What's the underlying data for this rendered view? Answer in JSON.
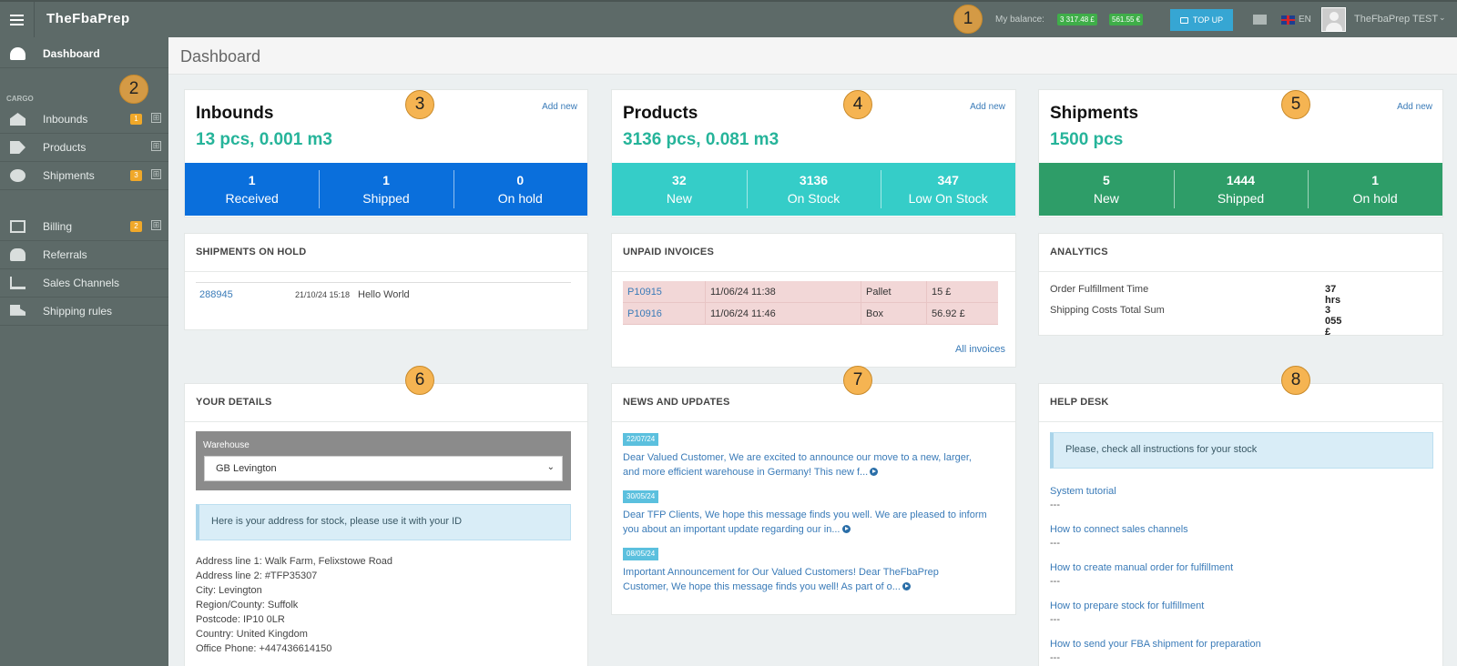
{
  "topbar": {
    "brand": "TheFbaPrep",
    "balance_label": "My balance:",
    "balances": [
      "3 317.48 £",
      "561.55 €"
    ],
    "topup_label": "TOP UP",
    "lang": "EN",
    "username": "TheFbaPrep TEST",
    "caret": "⌄"
  },
  "sidebar": {
    "dashboard": "Dashboard",
    "section_cargo": "CARGO",
    "items": [
      {
        "label": "Inbounds",
        "badge": "1",
        "plus": "⊞"
      },
      {
        "label": "Products",
        "plus": "⊞"
      },
      {
        "label": "Shipments",
        "badge": "3",
        "plus": "⊞"
      },
      {
        "label": "Billing",
        "badge": "2",
        "plus": "⊞"
      },
      {
        "label": "Referrals"
      },
      {
        "label": "Sales Channels"
      },
      {
        "label": "Shipping rules"
      }
    ]
  },
  "page": {
    "title": "Dashboard"
  },
  "markers": [
    "1",
    "2",
    "3",
    "4",
    "5",
    "6",
    "7",
    "8"
  ],
  "cards": {
    "inbounds": {
      "title": "Inbounds",
      "sub": "13 pcs, 0.001 m3",
      "add_new": "Add new",
      "color": "#0a6fdc",
      "stats": [
        {
          "num": "1",
          "label": "Received"
        },
        {
          "num": "1",
          "label": "Shipped"
        },
        {
          "num": "0",
          "label": "On hold"
        }
      ]
    },
    "products": {
      "title": "Products",
      "sub": "3136 pcs, 0.081 m3",
      "add_new": "Add new",
      "color": "#35cdc8",
      "stats": [
        {
          "num": "32",
          "label": "New"
        },
        {
          "num": "3136",
          "label": "On Stock"
        },
        {
          "num": "347",
          "label": "Low On Stock"
        }
      ]
    },
    "shipments": {
      "title": "Shipments",
      "sub": "1500 pcs",
      "add_new": "Add new",
      "color": "#2e9d68",
      "stats": [
        {
          "num": "5",
          "label": "New"
        },
        {
          "num": "1444",
          "label": "Shipped"
        },
        {
          "num": "1",
          "label": "On hold"
        }
      ]
    }
  },
  "on_hold": {
    "title": "SHIPMENTS ON HOLD",
    "row": {
      "id": "288945",
      "date": "21/10/24 15:18",
      "text": "Hello World"
    }
  },
  "invoices": {
    "title": "UNPAID INVOICES",
    "rows": [
      {
        "id": "P10915",
        "date": "11/06/24 11:38",
        "type": "Pallet",
        "amount": "15 £"
      },
      {
        "id": "P10916",
        "date": "11/06/24 11:46",
        "type": "Box",
        "amount": "56.92 £"
      }
    ],
    "all_link": "All invoices"
  },
  "analytics": {
    "title": "ANALYTICS",
    "rows": [
      {
        "label": "Order Fulfillment Time",
        "value": "37 hrs"
      },
      {
        "label": "Shipping Costs Total Sum",
        "value": "3 055 £"
      }
    ]
  },
  "details": {
    "title": "YOUR DETAILS",
    "warehouse_label": "Warehouse",
    "warehouse_value": "GB Levington",
    "caret": "⌄",
    "info": "Here is your address for stock, please use it with your ID",
    "address": [
      "Address line 1: Walk Farm, Felixstowe Road",
      "Address line 2: #TFP35307",
      "City: Levington",
      "Region/County: Suffolk",
      "Postcode: IP10 0LR",
      "Country: United Kingdom",
      "Office Phone: +447436614150"
    ]
  },
  "news": {
    "title": "NEWS AND UPDATES",
    "items": [
      {
        "date": "22/07/24",
        "line1": "Dear Valued Customer, We are excited to announce our move to a new, larger,",
        "line2": "and more efficient warehouse in Germany! This new f..."
      },
      {
        "date": "30/05/24",
        "line1": "Dear TFP Clients, We hope this message finds you well. We are pleased to inform",
        "line2": "you about an important update regarding our in..."
      },
      {
        "date": "08/05/24",
        "line1": "Important Announcement for Our Valued Customers! Dear TheFbaPrep",
        "line2": "Customer, We hope this message finds you well! As part of o..."
      }
    ]
  },
  "helpdesk": {
    "title": "HELP DESK",
    "info": "Please, check all instructions for your stock",
    "dash": "---",
    "links": [
      "System tutorial",
      "How to connect sales channels",
      "How to create manual order for fulfillment",
      "How to prepare stock for fulfillment",
      "How to send your FBA shipment for preparation"
    ]
  }
}
